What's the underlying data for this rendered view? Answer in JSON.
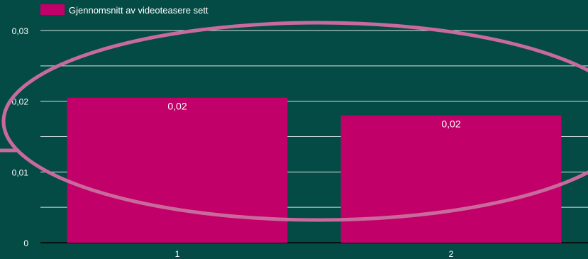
{
  "chart_data": {
    "type": "bar",
    "categories": [
      "1",
      "2"
    ],
    "series": [
      {
        "name": "Gjennomsnitt av videoteasere sett",
        "values": [
          0.0205,
          0.018
        ],
        "data_labels": [
          "0,02",
          "0,02"
        ]
      }
    ],
    "ylim": [
      0,
      0.03
    ],
    "yticks": [
      0,
      0.01,
      0.02,
      0.03
    ],
    "ytick_labels": [
      "0",
      "0,01",
      "0,02",
      "0,03"
    ],
    "grid": true,
    "legend_placement": "top-left",
    "colors": {
      "background": "#054b45",
      "bar": "#c2006a",
      "grid": "#ffffff",
      "annotation": "#c86b9c"
    },
    "annotations": [
      {
        "type": "ellipse-highlight",
        "color": "#c86b9c"
      }
    ]
  }
}
